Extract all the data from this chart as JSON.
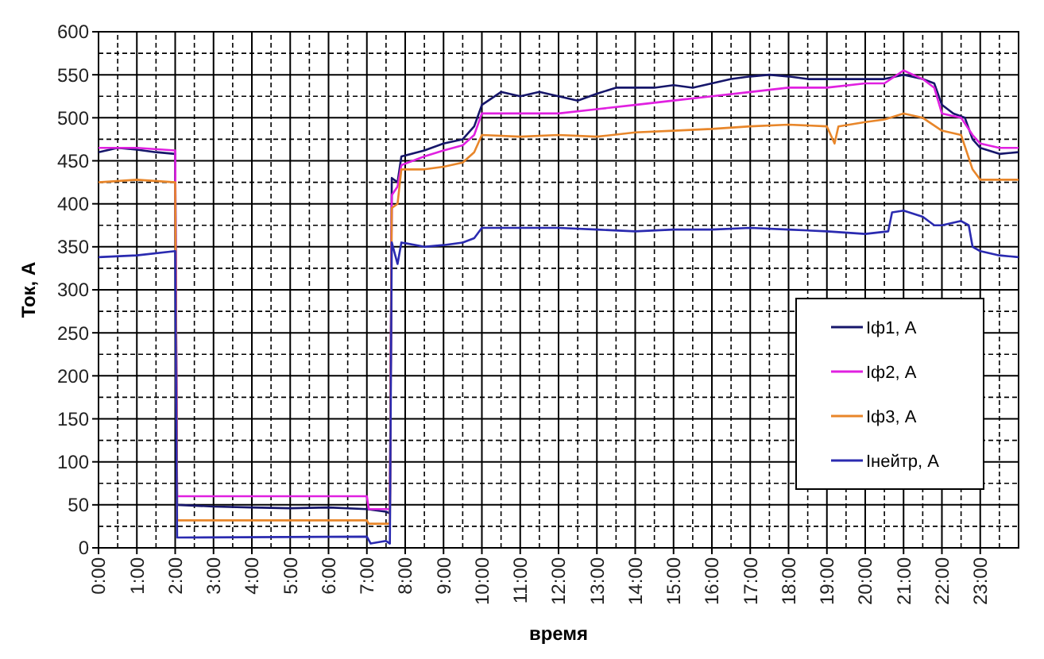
{
  "chart_data": {
    "type": "line",
    "xlabel": "время",
    "ylabel": "Ток, А",
    "xlim": [
      0,
      24
    ],
    "ylim": [
      0,
      600
    ],
    "xticks": [
      {
        "value": 0,
        "label": "0:00"
      },
      {
        "value": 1,
        "label": "1:00"
      },
      {
        "value": 2,
        "label": "2:00"
      },
      {
        "value": 3,
        "label": "3:00"
      },
      {
        "value": 4,
        "label": "4:00"
      },
      {
        "value": 5,
        "label": "5:00"
      },
      {
        "value": 6,
        "label": "6:00"
      },
      {
        "value": 7,
        "label": "7:00"
      },
      {
        "value": 8,
        "label": "8:00"
      },
      {
        "value": 9,
        "label": "9:00"
      },
      {
        "value": 10,
        "label": "10:00"
      },
      {
        "value": 11,
        "label": "11:00"
      },
      {
        "value": 12,
        "label": "12:00"
      },
      {
        "value": 13,
        "label": "13:00"
      },
      {
        "value": 14,
        "label": "14:00"
      },
      {
        "value": 15,
        "label": "15:00"
      },
      {
        "value": 16,
        "label": "16:00"
      },
      {
        "value": 17,
        "label": "17:00"
      },
      {
        "value": 18,
        "label": "18:00"
      },
      {
        "value": 19,
        "label": "19:00"
      },
      {
        "value": 20,
        "label": "20:00"
      },
      {
        "value": 21,
        "label": "21:00"
      },
      {
        "value": 22,
        "label": "22:00"
      },
      {
        "value": 23,
        "label": "23:00"
      }
    ],
    "yticks": [
      0,
      50,
      100,
      150,
      200,
      250,
      300,
      350,
      400,
      450,
      500,
      550,
      600
    ],
    "grid": true,
    "legend": "right",
    "marker": "none",
    "line_style": "solid",
    "series": [
      {
        "name": "Iф1, А",
        "color": "#16166a",
        "x": [
          0,
          0.5,
          1,
          1.5,
          2,
          2.05,
          3,
          4,
          5,
          6,
          7,
          7.5,
          7.6,
          7.65,
          7.8,
          7.9,
          8.5,
          9,
          9.5,
          9.8,
          10,
          10.5,
          11,
          11.5,
          12,
          12.5,
          13,
          13.5,
          14,
          14.5,
          15,
          15.5,
          16,
          16.5,
          17,
          17.5,
          18,
          18.5,
          19,
          19.5,
          20,
          20.5,
          21,
          21.5,
          21.8,
          22,
          22.3,
          22.6,
          22.8,
          23,
          23.5,
          24
        ],
        "values": [
          460,
          465,
          463,
          460,
          458,
          50,
          48,
          47,
          46,
          47,
          45,
          42,
          40,
          430,
          425,
          455,
          462,
          470,
          475,
          490,
          515,
          530,
          525,
          530,
          525,
          520,
          528,
          535,
          535,
          535,
          538,
          535,
          540,
          545,
          548,
          550,
          548,
          545,
          545,
          545,
          545,
          545,
          550,
          545,
          540,
          515,
          505,
          500,
          475,
          465,
          458,
          460
        ]
      },
      {
        "name": "Iф2, А",
        "color": "#e020e0",
        "x": [
          0,
          1,
          2,
          2.05,
          7,
          7.05,
          7.6,
          7.65,
          7.8,
          7.9,
          8.5,
          9,
          9.5,
          9.8,
          10,
          11,
          12,
          13,
          14,
          15,
          16,
          17,
          18,
          19,
          20,
          20.5,
          21,
          21.5,
          21.8,
          22,
          22.5,
          22.8,
          23,
          23.5,
          24
        ],
        "values": [
          465,
          465,
          462,
          60,
          60,
          45,
          45,
          410,
          420,
          445,
          455,
          462,
          468,
          480,
          505,
          505,
          505,
          510,
          515,
          520,
          525,
          530,
          535,
          535,
          540,
          540,
          555,
          545,
          535,
          505,
          500,
          480,
          470,
          465,
          465
        ]
      },
      {
        "name": "Iф3, А",
        "color": "#e8862a",
        "x": [
          0,
          1,
          2,
          2.05,
          7,
          7.05,
          7.6,
          7.65,
          7.8,
          7.9,
          8.5,
          9,
          9.5,
          9.8,
          10,
          11,
          12,
          13,
          14,
          15,
          16,
          17,
          18,
          19,
          19.2,
          19.3,
          20,
          20.5,
          21,
          21.5,
          22,
          22.5,
          22.8,
          23,
          24
        ],
        "values": [
          425,
          428,
          425,
          32,
          32,
          28,
          28,
          395,
          400,
          440,
          440,
          443,
          448,
          460,
          480,
          478,
          480,
          478,
          483,
          485,
          487,
          490,
          492,
          490,
          470,
          490,
          495,
          498,
          505,
          500,
          485,
          480,
          440,
          428,
          428
        ]
      },
      {
        "name": "Iнейтр, А",
        "color": "#2a2ab0",
        "x": [
          0,
          1,
          2,
          2.05,
          7,
          7.1,
          7.5,
          7.6,
          7.65,
          7.8,
          7.9,
          8.5,
          9,
          9.5,
          9.8,
          10,
          12,
          13,
          14,
          15,
          16,
          17,
          18,
          19,
          20,
          20.6,
          20.7,
          21,
          21.5,
          21.8,
          22,
          22.5,
          22.7,
          22.8,
          23,
          23.5,
          24
        ],
        "values": [
          338,
          340,
          345,
          12,
          13,
          5,
          8,
          5,
          355,
          330,
          355,
          350,
          352,
          355,
          360,
          372,
          372,
          370,
          368,
          370,
          370,
          372,
          370,
          368,
          365,
          368,
          390,
          392,
          385,
          375,
          375,
          380,
          375,
          350,
          345,
          340,
          338
        ]
      }
    ]
  }
}
